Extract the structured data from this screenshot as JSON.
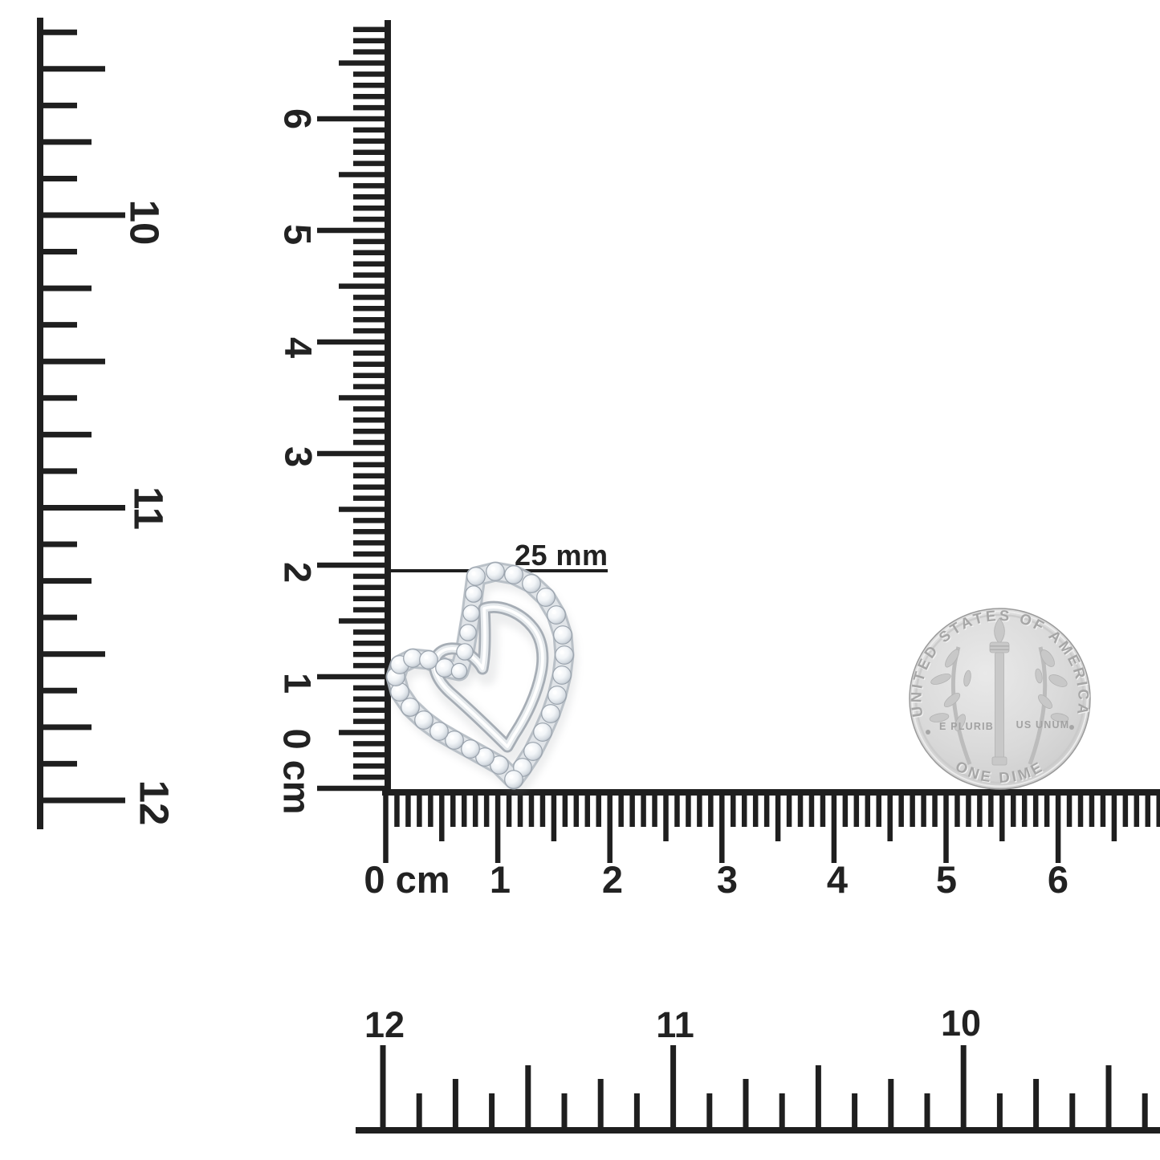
{
  "annotation": {
    "size_label": "25 mm"
  },
  "rulers": {
    "left_inch": {
      "unit": "inches",
      "labels": [
        "10",
        "11",
        "12"
      ]
    },
    "vertical_cm": {
      "unit": "cm",
      "labels": [
        "6",
        "5",
        "4",
        "3",
        "2",
        "1",
        "0 cm"
      ]
    },
    "horizontal_cm": {
      "unit": "cm",
      "labels": [
        "0 cm",
        "1",
        "2",
        "3",
        "4",
        "5",
        "6"
      ]
    },
    "bottom_inch": {
      "unit": "inches",
      "labels": [
        "12",
        "11",
        "10"
      ]
    }
  },
  "coin": {
    "top_text": "UNITED STATES OF AMERICA",
    "bottom_text": "ONE DIME",
    "motto_left": "E PLURIB",
    "motto_right": "US UNUM"
  },
  "colors": {
    "ink": "#1f1f1f",
    "background": "#ffffff",
    "coin_silver": "#d6d6d6",
    "metal_shade": "#a6adb5",
    "metal_highlight": "#ffffff"
  }
}
